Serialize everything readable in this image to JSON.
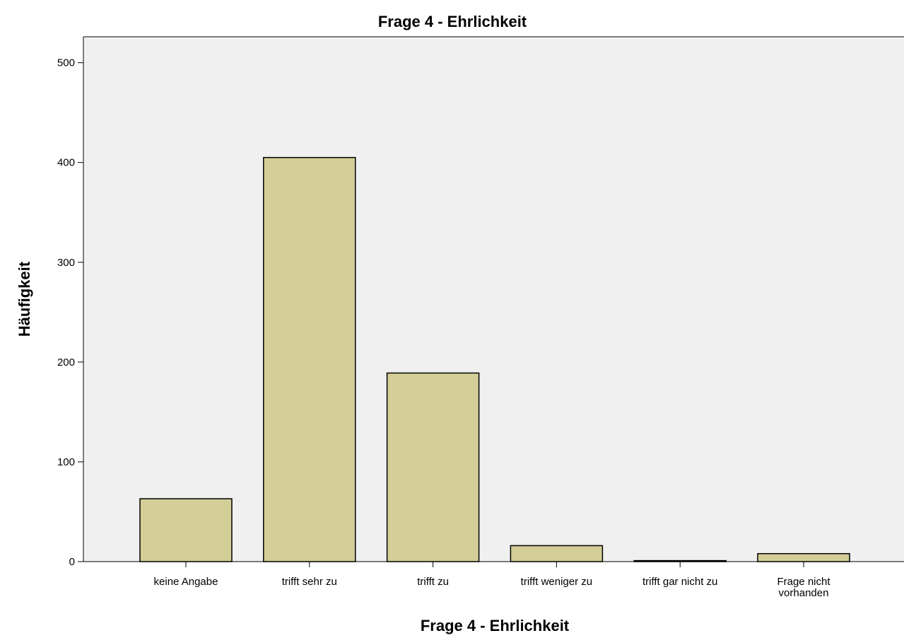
{
  "chart_data": {
    "type": "bar",
    "title": "Frage 4 - Ehrlichkeit",
    "x_label": "Frage 4 - Ehrlichkeit",
    "y_label": "Häufigkeit",
    "categories": [
      "keine Angabe",
      "trifft sehr zu",
      "trifft zu",
      "trifft weniger zu",
      "trifft gar nicht zu",
      "Frage nicht vorhanden"
    ],
    "values": [
      63,
      405,
      189,
      16,
      1,
      8
    ],
    "color": "#d3ce97",
    "ylim": [
      0,
      526
    ],
    "yticks": [
      0,
      100,
      200,
      300,
      400,
      500
    ],
    "grid": false
  }
}
